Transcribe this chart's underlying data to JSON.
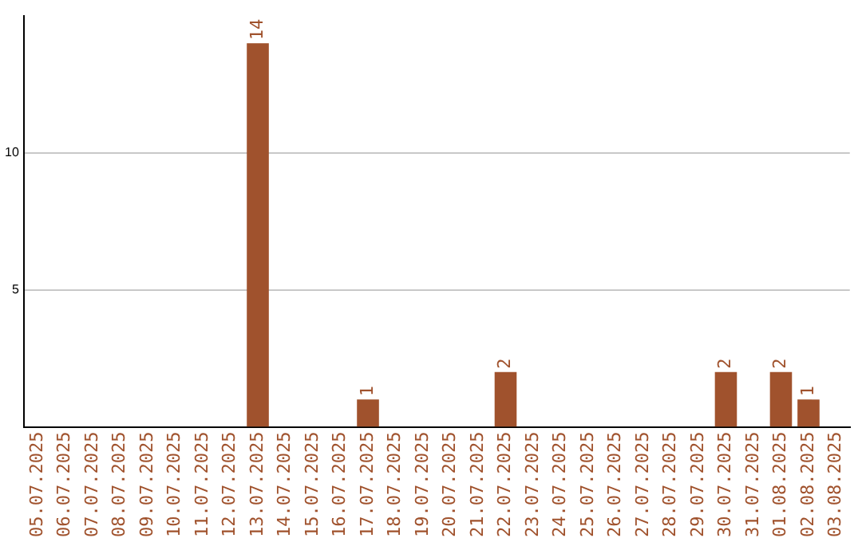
{
  "chart_data": {
    "type": "bar",
    "categories": [
      "05.07.2025",
      "06.07.2025",
      "07.07.2025",
      "08.07.2025",
      "09.07.2025",
      "10.07.2025",
      "11.07.2025",
      "12.07.2025",
      "13.07.2025",
      "14.07.2025",
      "15.07.2025",
      "16.07.2025",
      "17.07.2025",
      "18.07.2025",
      "19.07.2025",
      "20.07.2025",
      "21.07.2025",
      "22.07.2025",
      "23.07.2025",
      "24.07.2025",
      "25.07.2025",
      "26.07.2025",
      "27.07.2025",
      "28.07.2025",
      "29.07.2025",
      "30.07.2025",
      "31.07.2025",
      "01.08.2025",
      "02.08.2025",
      "03.08.2025"
    ],
    "values": [
      0,
      0,
      0,
      0,
      0,
      0,
      0,
      0,
      14,
      0,
      0,
      0,
      1,
      0,
      0,
      0,
      0,
      2,
      0,
      0,
      0,
      0,
      0,
      0,
      0,
      2,
      0,
      2,
      1,
      0
    ],
    "value_labels": [
      null,
      null,
      null,
      null,
      null,
      null,
      null,
      null,
      "14",
      null,
      null,
      null,
      "1",
      null,
      null,
      null,
      null,
      "2",
      null,
      null,
      null,
      null,
      null,
      null,
      null,
      "2",
      null,
      "2",
      "1",
      null
    ],
    "color": "#a0522d",
    "ylim": [
      0,
      15
    ],
    "yticks": [
      5,
      10
    ],
    "grid": "y",
    "legend": false
  }
}
